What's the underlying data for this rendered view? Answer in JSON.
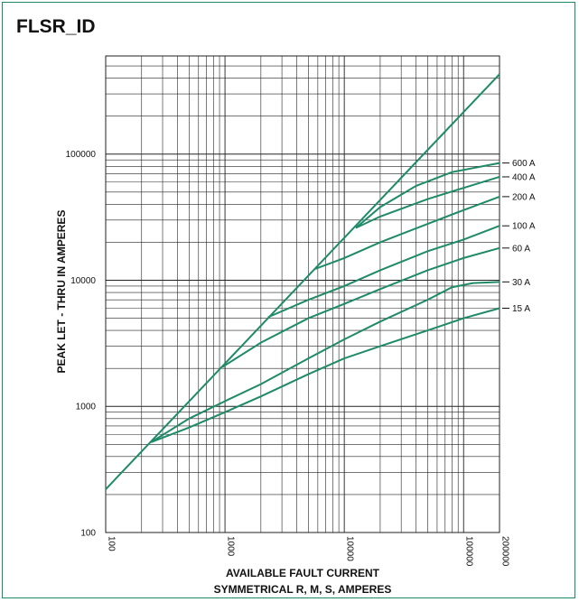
{
  "chart_data": {
    "type": "line",
    "title": "FLSR_ID",
    "xlabel": [
      "AVAILABLE FAULT CURRENT",
      "SYMMETRICAL R, M, S, AMPERES"
    ],
    "ylabel": "PEAK LET - THRU IN AMPERES",
    "xscale": "log",
    "yscale": "log",
    "xlim": [
      100,
      200000
    ],
    "ylim": [
      100,
      600000
    ],
    "x_ticks": [
      {
        "value": 100,
        "label": "100"
      },
      {
        "value": 1000,
        "label": "1000"
      },
      {
        "value": 10000,
        "label": "10000"
      },
      {
        "value": 100000,
        "label": "100000"
      },
      {
        "value": 200000,
        "label": "200000"
      }
    ],
    "y_ticks": [
      {
        "value": 100,
        "label": "100"
      },
      {
        "value": 1000,
        "label": "1000"
      },
      {
        "value": 10000,
        "label": "10000"
      },
      {
        "value": 100000,
        "label": "100000"
      }
    ],
    "grid": true,
    "line_color": "#1f8a68",
    "reference_line": {
      "name": "",
      "points": [
        [
          100,
          220
        ],
        [
          200000,
          430000
        ]
      ]
    },
    "series": [
      {
        "name": "600 A",
        "points": [
          [
            12500,
            26000
          ],
          [
            20000,
            38000
          ],
          [
            40000,
            56000
          ],
          [
            80000,
            72000
          ],
          [
            200000,
            85000
          ]
        ]
      },
      {
        "name": "400 A",
        "points": [
          [
            12500,
            26000
          ],
          [
            20000,
            32000
          ],
          [
            50000,
            44000
          ],
          [
            100000,
            54000
          ],
          [
            200000,
            66000
          ]
        ]
      },
      {
        "name": "200 A",
        "points": [
          [
            5700,
            12300
          ],
          [
            10000,
            15000
          ],
          [
            20000,
            20000
          ],
          [
            50000,
            28000
          ],
          [
            100000,
            36000
          ],
          [
            200000,
            46000
          ]
        ]
      },
      {
        "name": "100 A",
        "points": [
          [
            2300,
            5100
          ],
          [
            5000,
            7000
          ],
          [
            10000,
            9000
          ],
          [
            20000,
            12000
          ],
          [
            50000,
            17000
          ],
          [
            100000,
            21000
          ],
          [
            200000,
            27000
          ]
        ]
      },
      {
        "name": "60 A",
        "points": [
          [
            950,
            2050
          ],
          [
            2000,
            3200
          ],
          [
            5000,
            5000
          ],
          [
            10000,
            6500
          ],
          [
            20000,
            8500
          ],
          [
            50000,
            12000
          ],
          [
            100000,
            15000
          ],
          [
            200000,
            18000
          ]
        ]
      },
      {
        "name": "30 A",
        "points": [
          [
            240,
            520
          ],
          [
            500,
            800
          ],
          [
            1000,
            1100
          ],
          [
            2000,
            1500
          ],
          [
            5000,
            2400
          ],
          [
            10000,
            3400
          ],
          [
            20000,
            4700
          ],
          [
            50000,
            7000
          ],
          [
            80000,
            8800
          ],
          [
            120000,
            9500
          ],
          [
            200000,
            9700
          ]
        ]
      },
      {
        "name": "15 A",
        "points": [
          [
            240,
            520
          ],
          [
            500,
            680
          ],
          [
            1000,
            900
          ],
          [
            2000,
            1200
          ],
          [
            5000,
            1800
          ],
          [
            10000,
            2400
          ],
          [
            20000,
            3000
          ],
          [
            50000,
            4000
          ],
          [
            100000,
            5000
          ],
          [
            200000,
            6000
          ]
        ]
      }
    ]
  }
}
